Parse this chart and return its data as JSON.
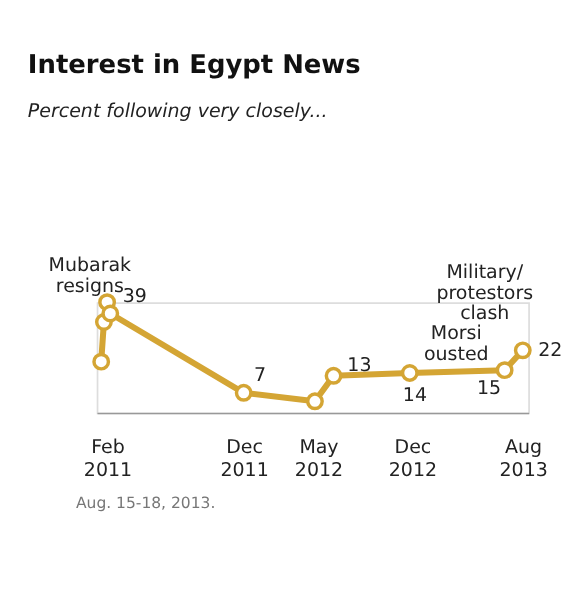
{
  "chart_data": {
    "type": "line",
    "title": "Interest in Egypt News",
    "subtitle": "Percent following very closely...",
    "x": [
      "2011-01-30",
      "2011-02-05",
      "2011-02-12",
      "2011-02-19",
      "2011-12-10",
      "2012-05-15",
      "2012-06-25",
      "2012-12-10",
      "2013-07-07",
      "2013-08-16"
    ],
    "series": [
      {
        "color": "#d4a534",
        "values": [
          18,
          32,
          39,
          35,
          7,
          4,
          13,
          14,
          15,
          22
        ],
        "value_labels": [
          null,
          null,
          "39",
          null,
          "7",
          null,
          "13",
          "14",
          "15",
          "22"
        ]
      }
    ],
    "xlim": [
      "2011-01-20",
      "2013-08-28"
    ],
    "xticks": [
      {
        "value": "2011-02-12",
        "label": "Feb 2011"
      },
      {
        "value": "2011-12-10",
        "label": "Dec 2011"
      },
      {
        "value": "2012-05-22",
        "label": "May 2012"
      },
      {
        "value": "2012-12-15",
        "label": "Dec 2012"
      },
      {
        "value": "2013-08-16",
        "label": "Aug 2013"
      }
    ],
    "tick_labels": "x",
    "marker": "circle",
    "grid": false,
    "annotations": [
      {
        "text": "Mubarak resigns",
        "x": "2011-02-12",
        "y": 39
      },
      {
        "text": "Morsi ousted",
        "x": "2013-07-07",
        "y": 15
      },
      {
        "text": "Military/ protestors clash",
        "x": "2013-08-16",
        "y": 22
      },
      "Aug. 15-18, 2013."
    ]
  }
}
